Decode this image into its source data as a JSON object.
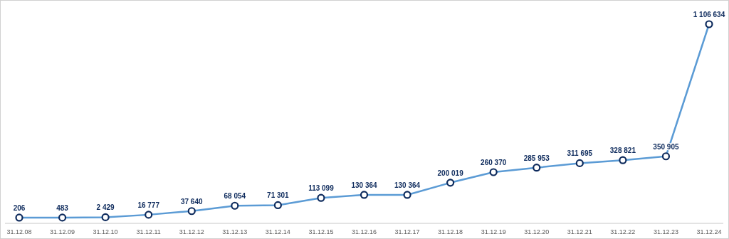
{
  "chart_data": {
    "type": "line",
    "categories": [
      "31.12.08",
      "31.12.09",
      "31.12.10",
      "31.12.11",
      "31.12.12",
      "31.12.13",
      "31.12.14",
      "31.12.15",
      "31.12.16",
      "31.12.17",
      "31.12.18",
      "31.12.19",
      "31.12.20",
      "31.12.21",
      "31.12.22",
      "31.12.23",
      "31.12.24"
    ],
    "series": [
      {
        "color": "#5b9bd5",
        "values": [
          206,
          483,
          2429,
          16777,
          37640,
          68054,
          71301,
          113099,
          130364,
          130364,
          200019,
          260370,
          285953,
          311695,
          328821,
          350905,
          1106634
        ],
        "value_labels": [
          "206",
          "483",
          "2 429",
          "16 777",
          "37 640",
          "68 054",
          "71 301",
          "113 099",
          "130 364",
          "130 364",
          "200 019",
          "260 370",
          "285 953",
          "311 695",
          "328 821",
          "350 905",
          "1 106 634"
        ]
      }
    ],
    "marker": "circle"
  }
}
